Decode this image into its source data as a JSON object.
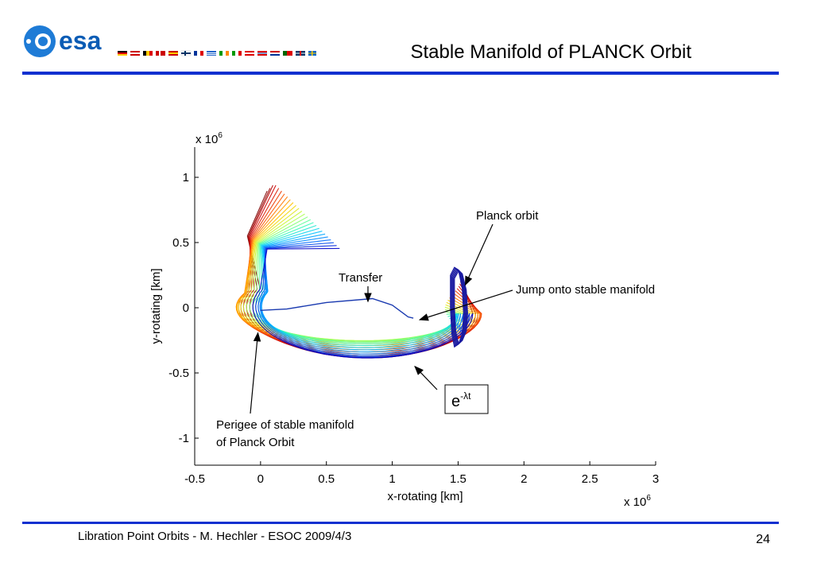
{
  "slide": {
    "title": "Stable Manifold of PLANCK Orbit",
    "logo_text": "esa",
    "footer": "Libration Point Orbits -  M. Hechler - ESOC 2009/4/3",
    "page_number": "24",
    "accent_color": "#1030d0"
  },
  "chart_data": {
    "type": "line",
    "title": "",
    "xlabel": "x-rotating [km]",
    "ylabel": "y-rotating [km]",
    "x_multiplier": "x 10",
    "x_multiplier_exp": "6",
    "y_multiplier": "x 10",
    "y_multiplier_exp": "6",
    "xlim": [
      -0.5,
      3
    ],
    "ylim": [
      -1.2,
      1.2
    ],
    "x_ticks": [
      -0.5,
      0,
      0.5,
      1,
      1.5,
      2,
      2.5,
      3
    ],
    "x_tick_labels": [
      "-0.5",
      "0",
      "0.5",
      "1",
      "1.5",
      "2",
      "2.5",
      "3"
    ],
    "y_ticks": [
      1,
      0.5,
      0,
      -0.5,
      -1
    ],
    "y_tick_labels": [
      "1",
      "0.5",
      "0",
      "-0.5",
      "-1"
    ],
    "grid": false,
    "colormap": [
      "#0000c8",
      "#0070ff",
      "#00c8ff",
      "#40ffb0",
      "#c0ff40",
      "#ffd000",
      "#ff6000",
      "#d00000",
      "#800000"
    ],
    "series": [
      {
        "name": "Planck orbit",
        "x": [
          1.46,
          1.49,
          1.52,
          1.55,
          1.56,
          1.55,
          1.52,
          1.49,
          1.47,
          1.46,
          1.46
        ],
        "y": [
          0.25,
          0.31,
          0.29,
          0.15,
          -0.05,
          -0.2,
          -0.28,
          -0.3,
          -0.2,
          0.0,
          0.25
        ]
      },
      {
        "name": "Transfer",
        "x": [
          0.0,
          0.2,
          0.5,
          0.85,
          1.0,
          1.12,
          1.16
        ],
        "y": [
          -0.02,
          -0.01,
          0.04,
          0.07,
          0.02,
          -0.07,
          -0.08
        ]
      }
    ],
    "annotations": [
      {
        "text": "Planck orbit",
        "target": [
          1.53,
          0.26
        ]
      },
      {
        "text": "Transfer",
        "target": [
          0.83,
          0.06
        ]
      },
      {
        "text": "Jump onto stable manifold",
        "target": [
          1.16,
          -0.08
        ]
      },
      {
        "text": "e",
        "superscript": "-λt",
        "target": [
          1.18,
          -0.45
        ]
      },
      {
        "text": "Perigee of stable manifold",
        "line2": "of Planck Orbit",
        "target": [
          -0.02,
          -0.18
        ]
      }
    ]
  }
}
